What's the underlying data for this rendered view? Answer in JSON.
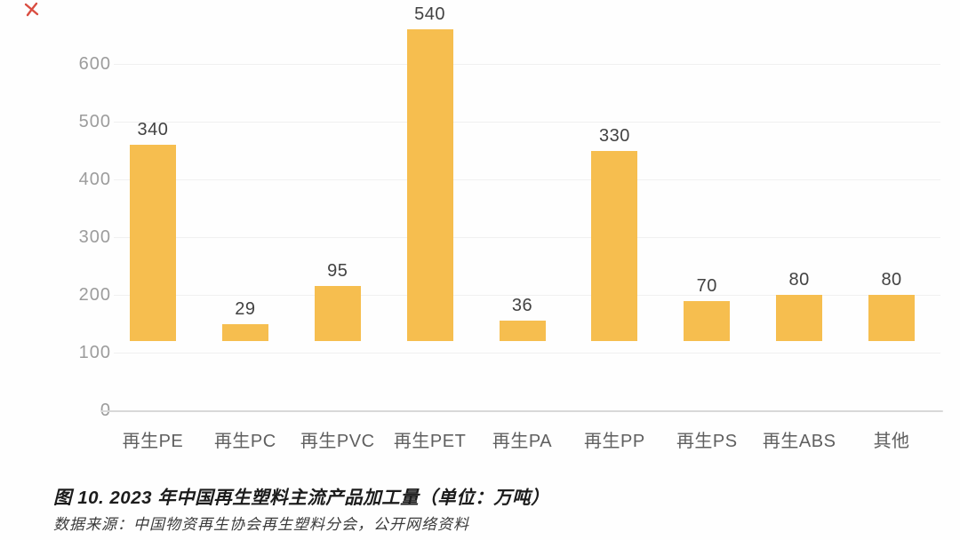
{
  "chart_data": {
    "type": "bar",
    "title": "图 10. 2023 年中国再生塑料主流产品加工量（单位：万吨）",
    "source_note": "数据来源：中国物资再生协会再生塑料分会，公开网络资料",
    "categories": [
      "再生PE",
      "再生PC",
      "再生PVC",
      "再生PET",
      "再生PA",
      "再生PP",
      "再生PS",
      "再生ABS",
      "其他"
    ],
    "values": [
      340,
      29,
      95,
      540,
      36,
      330,
      70,
      80,
      80
    ],
    "unit": "万吨",
    "xlabel": "",
    "ylabel": "",
    "ylim": [
      0,
      600
    ],
    "yticks": [
      0,
      100,
      200,
      300,
      400,
      500,
      600
    ],
    "grid": "faint-horizontal",
    "legend_position": "none",
    "bar_color": "#F6BE4F"
  },
  "footer": {
    "caption": "图 10. 2023 年中国再生塑料主流产品加工量（单位：万吨）",
    "source": "数据来源：中国物资再生协会再生塑料分会，公开网络资料"
  },
  "annotations": {
    "red_pen_mark_color": "#d63a2d"
  },
  "colors": {
    "bar": "#F6BE4F",
    "axis_label": "#9c9c9c",
    "value_label": "#424242",
    "category_label": "#5f5f5f",
    "baseline": "#d8d8d8",
    "gridline": "#e9e9e9",
    "caption_text": "#1c1c1c",
    "source_text": "#3a3a3a"
  }
}
